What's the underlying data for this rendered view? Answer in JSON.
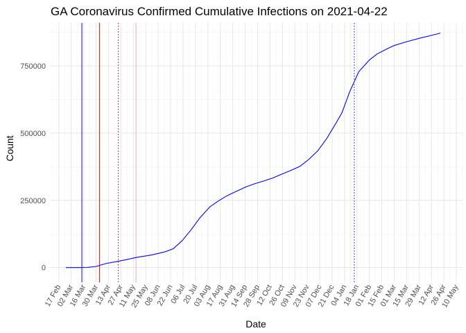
{
  "chart_data": {
    "type": "line",
    "title": "GA Coronavirus Confirmed Cumulative Infections on 2021-04-22",
    "xlabel": "Date",
    "ylabel": "Count",
    "x_axis_type": "date",
    "xlim": [
      "2020-02-07",
      "2021-05-17"
    ],
    "ylim": [
      -55000,
      910000
    ],
    "y_ticks": [
      0,
      250000,
      500000,
      750000
    ],
    "y_tick_labels": [
      "0",
      "250000",
      "500000",
      "750000"
    ],
    "x_tick_labels": [
      "17 Feb",
      "02 Mar",
      "16 Mar",
      "30 Mar",
      "13 Apr",
      "27 Apr",
      "11 May",
      "25 May",
      "08 Jun",
      "22 Jun",
      "06 Jul",
      "20 Jul",
      "03 Aug",
      "17 Aug",
      "31 Aug",
      "14 Sep",
      "28 Sep",
      "12 Oct",
      "26 Oct",
      "09 Nov",
      "23 Nov",
      "07 Dec",
      "21 Dec",
      "04 Jan",
      "18 Jan",
      "01 Feb",
      "15 Feb",
      "01 Mar",
      "15 Mar",
      "29 Mar",
      "12 Apr",
      "26 Apr",
      "10 May"
    ],
    "x_tick_dates": [
      "2020-02-17",
      "2020-03-02",
      "2020-03-16",
      "2020-03-30",
      "2020-04-13",
      "2020-04-27",
      "2020-05-11",
      "2020-05-25",
      "2020-06-08",
      "2020-06-22",
      "2020-07-06",
      "2020-07-20",
      "2020-08-03",
      "2020-08-17",
      "2020-08-31",
      "2020-09-14",
      "2020-09-28",
      "2020-10-12",
      "2020-10-26",
      "2020-11-09",
      "2020-11-23",
      "2020-12-07",
      "2020-12-21",
      "2021-01-04",
      "2021-01-18",
      "2021-02-01",
      "2021-02-15",
      "2021-03-01",
      "2021-03-15",
      "2021-03-29",
      "2021-04-12",
      "2021-04-26",
      "2021-05-10"
    ],
    "grid": true,
    "legend": "none",
    "series": [
      {
        "color": "#0000ff",
        "x": [
          "2020-02-25",
          "2020-03-10",
          "2020-03-20",
          "2020-03-30",
          "2020-04-10",
          "2020-04-20",
          "2020-05-01",
          "2020-05-15",
          "2020-06-01",
          "2020-06-15",
          "2020-06-25",
          "2020-07-05",
          "2020-07-15",
          "2020-07-25",
          "2020-08-05",
          "2020-08-15",
          "2020-08-25",
          "2020-09-05",
          "2020-09-15",
          "2020-09-25",
          "2020-10-05",
          "2020-10-15",
          "2020-10-25",
          "2020-11-05",
          "2020-11-15",
          "2020-11-25",
          "2020-12-05",
          "2020-12-15",
          "2020-12-25",
          "2021-01-01",
          "2021-01-10",
          "2021-01-20",
          "2021-02-01",
          "2021-02-10",
          "2021-02-20",
          "2021-03-01",
          "2021-03-15",
          "2021-04-01",
          "2021-04-10",
          "2021-04-22"
        ],
        "y": [
          0,
          0,
          500,
          4000,
          15000,
          21000,
          28000,
          38000,
          47000,
          58000,
          70000,
          100000,
          140000,
          185000,
          225000,
          248000,
          268000,
          285000,
          300000,
          312000,
          322000,
          333000,
          347000,
          362000,
          377000,
          403000,
          435000,
          480000,
          535000,
          575000,
          655000,
          728000,
          772000,
          795000,
          812000,
          826000,
          840000,
          855000,
          862000,
          872000
        ]
      }
    ],
    "reference_lines": [
      {
        "x": "2020-03-14",
        "color": "#0000ff",
        "style": "solid"
      },
      {
        "x": "2020-04-03",
        "color": "#cc0000",
        "style": "solid"
      },
      {
        "x": "2020-04-24",
        "color": "#cc0000",
        "style": "dotted"
      },
      {
        "x": "2020-05-14",
        "color": "#f4a6a6",
        "style": "solid"
      },
      {
        "x": "2021-01-15",
        "color": "#0000ff",
        "style": "dotted"
      }
    ]
  }
}
